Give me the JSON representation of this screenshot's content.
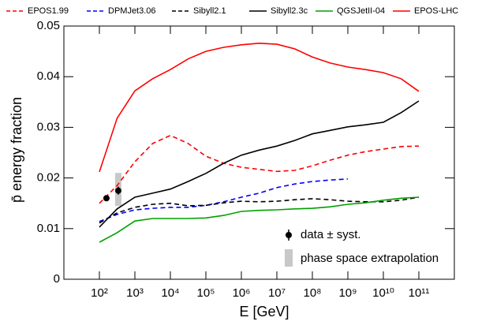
{
  "chart_data": {
    "type": "line",
    "xlabel": "E [GeV]",
    "ylabel": "p̄ energy fraction",
    "xscale": "log",
    "xlim": [
      10,
      1000000000000
    ],
    "ylim": [
      0,
      0.05
    ],
    "xticks": [
      {
        "value": 100,
        "label": "10²"
      },
      {
        "value": 1000,
        "label": "10³"
      },
      {
        "value": 10000,
        "label": "10⁴"
      },
      {
        "value": 100000,
        "label": "10⁵"
      },
      {
        "value": 1000000,
        "label": "10⁶"
      },
      {
        "value": 10000000,
        "label": "10⁷"
      },
      {
        "value": 100000000,
        "label": "10⁸"
      },
      {
        "value": 1000000000,
        "label": "10⁹"
      },
      {
        "value": 10000000000,
        "label": "10¹⁰"
      },
      {
        "value": 100000000000,
        "label": "10¹¹"
      }
    ],
    "yticks": [
      0,
      0.01,
      0.02,
      0.03,
      0.04,
      0.05
    ],
    "legend": "top",
    "x": [
      100,
      316.2,
      1000,
      3162,
      10000,
      31620,
      100000,
      316200,
      1000000,
      3162000,
      10000000,
      31620000,
      100000000,
      316200000,
      1000000000,
      3162000000,
      10000000000,
      31620000000,
      100000000000
    ],
    "series": [
      {
        "name": "EPOS1.99",
        "color": "#ff0000",
        "line_style": "dashed",
        "values": [
          0.015,
          0.0185,
          0.0232,
          0.0268,
          0.0284,
          0.0268,
          0.0243,
          0.0229,
          0.0221,
          0.0217,
          0.0213,
          0.0215,
          0.0224,
          0.0235,
          0.0245,
          0.0252,
          0.0257,
          0.0262,
          0.0263
        ]
      },
      {
        "name": "DPMJet3.06",
        "color": "#0000ff",
        "line_style": "dashed",
        "values": [
          0.0114,
          0.0128,
          0.0137,
          0.014,
          0.0142,
          0.0142,
          0.0146,
          0.0153,
          0.0162,
          0.017,
          0.0181,
          0.0188,
          0.0193,
          0.0196,
          0.0198,
          null,
          null,
          null,
          null
        ]
      },
      {
        "name": "Sibyll2.1",
        "color": "#000000",
        "line_style": "dashed",
        "values": [
          0.0111,
          0.0131,
          0.0142,
          0.0148,
          0.015,
          0.0145,
          0.0146,
          0.0151,
          0.0154,
          0.0153,
          0.0154,
          0.0157,
          0.0159,
          0.0157,
          0.0154,
          0.0153,
          0.0153,
          0.0156,
          0.0162
        ]
      },
      {
        "name": "Sibyll2.3c",
        "color": "#000000",
        "line_style": "solid",
        "values": [
          0.0103,
          0.0139,
          0.0162,
          0.017,
          0.0178,
          0.0193,
          0.0209,
          0.0229,
          0.0245,
          0.0255,
          0.0263,
          0.0274,
          0.0287,
          0.0294,
          0.0301,
          0.0305,
          0.031,
          0.0329,
          0.0352
        ]
      },
      {
        "name": "QGSJetII-04",
        "color": "#00a000",
        "line_style": "solid",
        "values": [
          0.0073,
          0.0092,
          0.0115,
          0.012,
          0.012,
          0.012,
          0.0121,
          0.0126,
          0.0134,
          0.0136,
          0.0137,
          0.0139,
          0.014,
          0.0143,
          0.0148,
          0.0151,
          0.0156,
          0.016,
          0.0162
        ]
      },
      {
        "name": "EPOS-LHC",
        "color": "#ff0000",
        "line_style": "solid",
        "values": [
          0.0212,
          0.0318,
          0.0372,
          0.0396,
          0.0414,
          0.0435,
          0.045,
          0.0458,
          0.0463,
          0.0466,
          0.0464,
          0.0455,
          0.0439,
          0.0427,
          0.0419,
          0.0414,
          0.0408,
          0.0396,
          0.0371
        ]
      }
    ],
    "data": {
      "name": "data ± syst.",
      "color": "#000000",
      "x": [
        158,
        340
      ],
      "values": [
        0.016,
        0.0175
      ],
      "errors": [
        0.0005,
        0.0008
      ]
    },
    "extrapolation": {
      "name": "phase space extrapolation",
      "color": "#c8c8c8",
      "x": 340,
      "low": 0.0145,
      "high": 0.021
    }
  }
}
